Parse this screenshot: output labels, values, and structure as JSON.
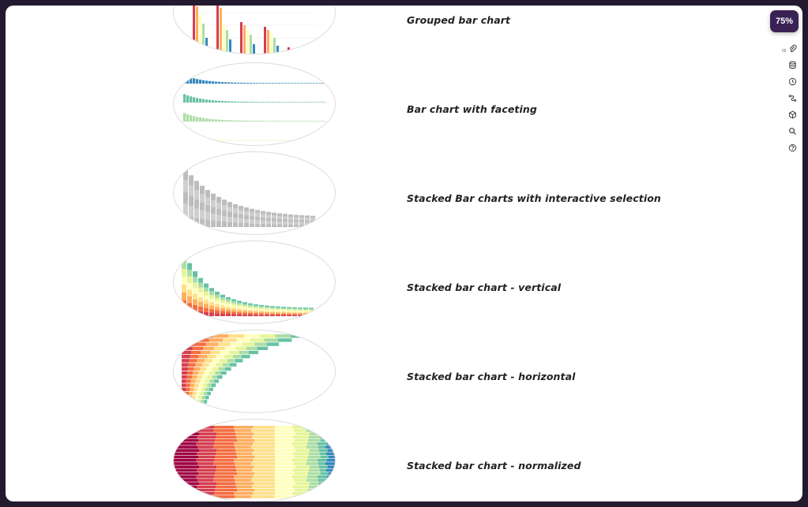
{
  "zoom": "75%",
  "toolbar": {
    "items": [
      {
        "icon": "paperclip-icon",
        "count": "55"
      },
      {
        "icon": "database-icon"
      },
      {
        "icon": "clock-icon"
      },
      {
        "icon": "route-icon"
      },
      {
        "icon": "cube-icon"
      },
      {
        "icon": "search-icon"
      },
      {
        "icon": "help-icon"
      }
    ]
  },
  "gallery": [
    {
      "title": "Grouped bar chart",
      "thumbnail": "grouped-bar"
    },
    {
      "title": "Bar chart with faceting",
      "thumbnail": "faceted-bar"
    },
    {
      "title": "Stacked Bar charts with interactive selection",
      "thumbnail": "stacked-selection"
    },
    {
      "title": "Stacked bar chart - vertical",
      "thumbnail": "stacked-vertical"
    },
    {
      "title": "Stacked bar chart - horizontal",
      "thumbnail": "stacked-horizontal"
    },
    {
      "title": "Stacked bar chart - normalized",
      "thumbnail": "stacked-normalized"
    }
  ],
  "colors": {
    "spectral": [
      "#9e0142",
      "#d53e4f",
      "#f46d43",
      "#fdae61",
      "#fee08b",
      "#ffffbf",
      "#e6f598",
      "#abdda4",
      "#66c2a5",
      "#3288bd"
    ]
  }
}
